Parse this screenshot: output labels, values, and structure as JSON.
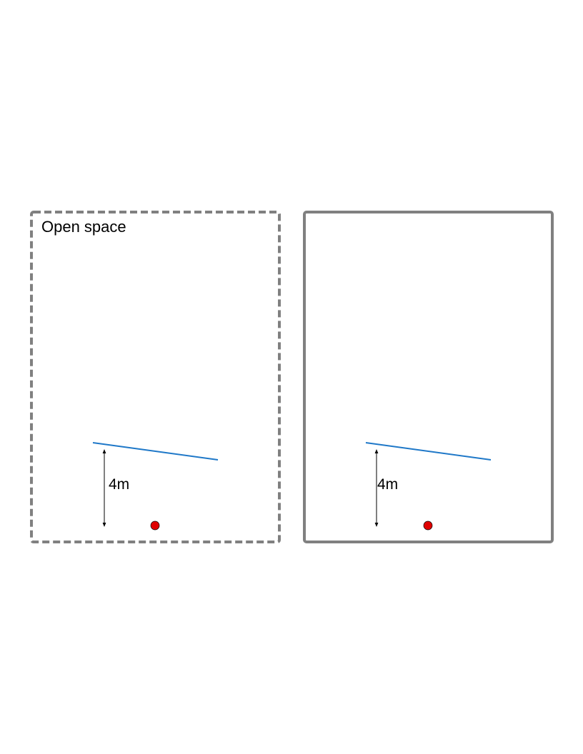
{
  "panels": [
    {
      "boundary": "dashed",
      "title": "Open space",
      "distance_label": "4m"
    },
    {
      "boundary": "solid",
      "title": "",
      "distance_label": "4m"
    }
  ],
  "colors": {
    "boundary": "#808080",
    "wall_line": "#1f78c8",
    "source_dot": "#e00000",
    "arrow": "#000000"
  }
}
